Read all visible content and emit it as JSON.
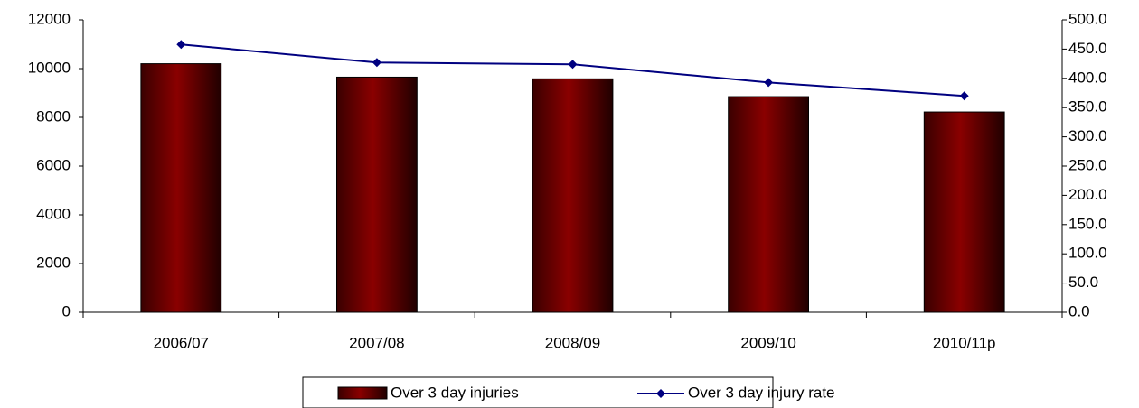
{
  "chart_data": {
    "type": "bar-line",
    "categories": [
      "2006/07",
      "2007/08",
      "2008/09",
      "2009/10",
      "2010/11p"
    ],
    "series": [
      {
        "name": "Over 3 day injuries",
        "type": "bar",
        "color": "#800000",
        "values": [
          10200,
          9650,
          9580,
          8850,
          8220
        ]
      },
      {
        "name": "Over 3 day injury rate",
        "type": "line",
        "axis": "y2",
        "color": "#000080",
        "values": [
          458,
          427,
          424,
          393,
          370
        ]
      }
    ],
    "ylim": [
      0,
      12000
    ],
    "yticks": [
      0,
      2000,
      4000,
      6000,
      8000,
      10000,
      12000
    ],
    "y2lim": [
      0,
      500
    ],
    "y2ticks": [
      {
        "value": 0,
        "label": "0.0"
      },
      {
        "value": 50,
        "label": "50.0"
      },
      {
        "value": 100,
        "label": "100.0"
      },
      {
        "value": 150,
        "label": "150.0"
      },
      {
        "value": 200,
        "label": "200.0"
      },
      {
        "value": 250,
        "label": "250.0"
      },
      {
        "value": 300,
        "label": "300.0"
      },
      {
        "value": 350,
        "label": "350.0"
      },
      {
        "value": 400,
        "label": "400.0"
      },
      {
        "value": 450,
        "label": "450.0"
      },
      {
        "value": 500,
        "label": "500.0"
      }
    ],
    "grid": false,
    "legend": "bottom"
  }
}
